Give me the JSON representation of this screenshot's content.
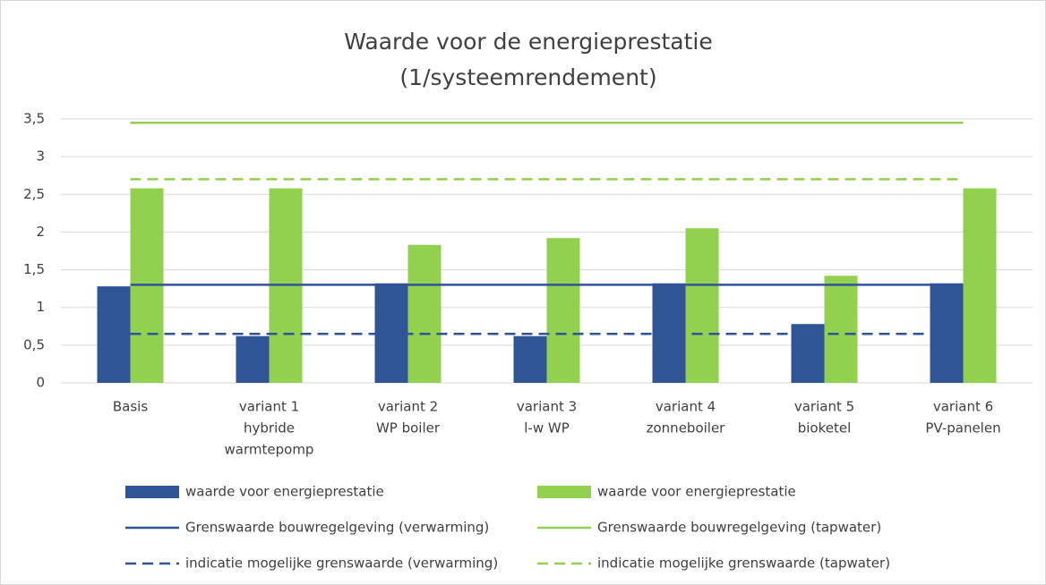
{
  "chart_data": {
    "type": "bar",
    "title": [
      "Waarde voor de energieprestatie",
      "(1/systeemrendement)"
    ],
    "categories": [
      [
        "Basis"
      ],
      [
        "variant 1",
        "hybride",
        "warmtepomp"
      ],
      [
        "variant 2",
        "WP boiler"
      ],
      [
        "variant 3",
        "l-w WP"
      ],
      [
        "variant 4",
        "zonneboiler"
      ],
      [
        "variant 5",
        "bioketel"
      ],
      [
        "variant 6",
        "PV-panelen"
      ]
    ],
    "series": [
      {
        "name": "waarde voor energieprestatie",
        "type": "bar",
        "color": "#2f5597",
        "values": [
          1.28,
          0.62,
          1.32,
          0.62,
          1.32,
          0.78,
          1.32
        ]
      },
      {
        "name": "waarde voor energieprestatie",
        "type": "bar",
        "color": "#92d050",
        "values": [
          2.58,
          2.58,
          1.83,
          1.92,
          2.05,
          1.42,
          2.58
        ]
      },
      {
        "name": "Grenswaarde bouwregelgeving (verwarming)",
        "type": "line",
        "style": "solid",
        "color": "#2f5597",
        "values": [
          1.3,
          1.3,
          1.3,
          1.3,
          1.3,
          1.3,
          1.3
        ]
      },
      {
        "name": "Grenswaarde bouwregelgeving (tapwater)",
        "type": "line",
        "style": "solid",
        "color": "#92d050",
        "values": [
          3.45,
          3.45,
          3.45,
          3.45,
          3.45,
          3.45,
          3.45
        ]
      },
      {
        "name": "indicatie mogelijke grenswaarde (verwarming)",
        "type": "line",
        "style": "dashed",
        "color": "#2f5597",
        "values": [
          0.65,
          0.65,
          0.65,
          0.65,
          0.65,
          0.65,
          0.65
        ]
      },
      {
        "name": "indicatie mogelijke grenswaarde (tapwater)",
        "type": "line",
        "style": "dashed",
        "color": "#92d050",
        "values": [
          2.7,
          2.7,
          2.7,
          2.7,
          2.7,
          2.7,
          2.7
        ]
      }
    ],
    "ylim": [
      0,
      3.5
    ],
    "yticks": [
      0,
      {
        "value": 0.5,
        "label": "0,5"
      },
      1,
      {
        "value": 1.5,
        "label": "1,5"
      },
      2,
      {
        "value": 2.5,
        "label": "2,5"
      },
      3,
      {
        "value": 3.5,
        "label": "3,5"
      }
    ],
    "grid": true,
    "legend": "bottom"
  }
}
